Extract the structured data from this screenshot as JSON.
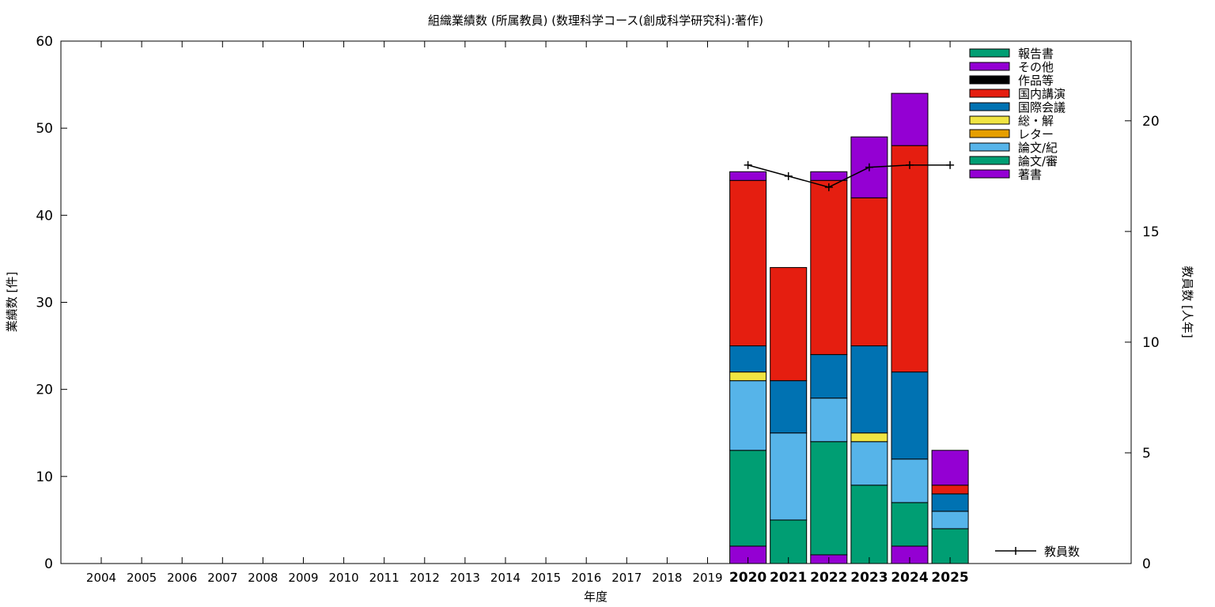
{
  "chart_data": {
    "type": "bar",
    "stacked": true,
    "title": "組織業績数 (所属教員) (数理科学コース(創成科学研究科):著作)",
    "xlabel": "年度",
    "ylabel": "業績数 [件]",
    "y2label": "教員数 [人年]",
    "ylim": [
      0,
      60
    ],
    "y2lim": [
      0,
      23.6
    ],
    "yticks": [
      "0",
      "10",
      "20",
      "30",
      "40",
      "50",
      "60"
    ],
    "y2ticks": [
      "0",
      "5",
      "10",
      "15",
      "20"
    ],
    "categories": [
      "2004",
      "2005",
      "2006",
      "2007",
      "2008",
      "2009",
      "2010",
      "2011",
      "2012",
      "2013",
      "2014",
      "2015",
      "2016",
      "2017",
      "2018",
      "2019",
      "2020",
      "2021",
      "2022",
      "2023",
      "2024",
      "2025"
    ],
    "bold_categories": [
      "2020",
      "2021",
      "2022",
      "2023",
      "2024",
      "2025"
    ],
    "legend_position": "top-right",
    "series": [
      {
        "name": "著書",
        "color": "#9400d3",
        "values": [
          0,
          0,
          0,
          0,
          0,
          0,
          0,
          0,
          0,
          0,
          0,
          0,
          0,
          0,
          0,
          0,
          2,
          0,
          1,
          0,
          2,
          0
        ]
      },
      {
        "name": "論文/審",
        "color": "#009e73",
        "values": [
          0,
          0,
          0,
          0,
          0,
          0,
          0,
          0,
          0,
          0,
          0,
          0,
          0,
          0,
          0,
          0,
          11,
          5,
          13,
          9,
          5,
          4
        ]
      },
      {
        "name": "論文/紀",
        "color": "#56b4e9",
        "values": [
          0,
          0,
          0,
          0,
          0,
          0,
          0,
          0,
          0,
          0,
          0,
          0,
          0,
          0,
          0,
          0,
          8,
          10,
          5,
          5,
          5,
          2
        ]
      },
      {
        "name": "レター",
        "color": "#e69f00",
        "values": [
          0,
          0,
          0,
          0,
          0,
          0,
          0,
          0,
          0,
          0,
          0,
          0,
          0,
          0,
          0,
          0,
          0,
          0,
          0,
          0,
          0,
          0
        ]
      },
      {
        "name": "総・解",
        "color": "#f0e442",
        "values": [
          0,
          0,
          0,
          0,
          0,
          0,
          0,
          0,
          0,
          0,
          0,
          0,
          0,
          0,
          0,
          0,
          1,
          0,
          0,
          1,
          0,
          0
        ]
      },
      {
        "name": "国際会議",
        "color": "#0072b2",
        "values": [
          0,
          0,
          0,
          0,
          0,
          0,
          0,
          0,
          0,
          0,
          0,
          0,
          0,
          0,
          0,
          0,
          3,
          6,
          5,
          10,
          10,
          2
        ]
      },
      {
        "name": "国内講演",
        "color": "#e51e10",
        "values": [
          0,
          0,
          0,
          0,
          0,
          0,
          0,
          0,
          0,
          0,
          0,
          0,
          0,
          0,
          0,
          0,
          19,
          13,
          20,
          17,
          26,
          1
        ]
      },
      {
        "name": "作品等",
        "color": "#000000",
        "values": [
          0,
          0,
          0,
          0,
          0,
          0,
          0,
          0,
          0,
          0,
          0,
          0,
          0,
          0,
          0,
          0,
          0,
          0,
          0,
          0,
          0,
          0
        ]
      },
      {
        "name": "その他",
        "color": "#9400d3",
        "values": [
          0,
          0,
          0,
          0,
          0,
          0,
          0,
          0,
          0,
          0,
          0,
          0,
          0,
          0,
          0,
          0,
          1,
          0,
          1,
          7,
          6,
          4
        ]
      },
      {
        "name": "報告書",
        "color": "#009e73",
        "values": [
          0,
          0,
          0,
          0,
          0,
          0,
          0,
          0,
          0,
          0,
          0,
          0,
          0,
          0,
          0,
          0,
          0,
          0,
          0,
          0,
          0,
          0
        ]
      }
    ],
    "line_series": {
      "name": "教員数",
      "color": "#000000",
      "x": [
        "2020",
        "2021",
        "2022",
        "2023",
        "2024",
        "2025"
      ],
      "values": [
        18,
        17.5,
        17,
        17.9,
        18,
        18
      ]
    }
  }
}
